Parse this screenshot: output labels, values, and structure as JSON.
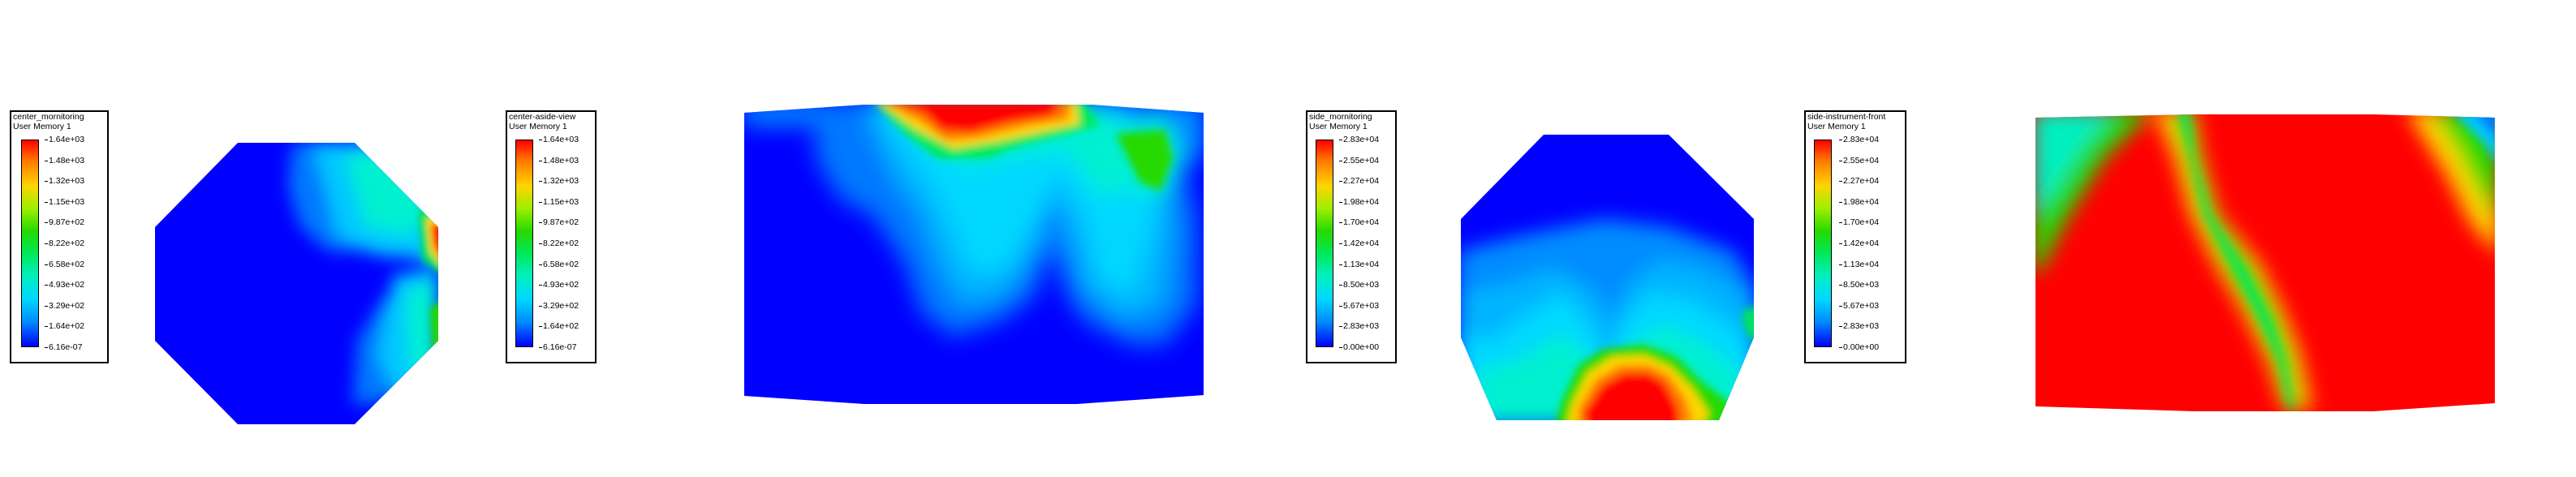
{
  "legends": [
    {
      "title": "center_mornitoring",
      "subtitle": "User Memory 1",
      "ticks": [
        "1.64e+03",
        "1.48e+03",
        "1.32e+03",
        "1.15e+03",
        "9.87e+02",
        "8.22e+02",
        "6.58e+02",
        "4.93e+02",
        "3.29e+02",
        "1.64e+02",
        "6.16e-07"
      ]
    },
    {
      "title": "center-aside-view",
      "subtitle": "User Memory 1",
      "ticks": [
        "1.64e+03",
        "1.48e+03",
        "1.32e+03",
        "1.15e+03",
        "9.87e+02",
        "8.22e+02",
        "6.58e+02",
        "4.93e+02",
        "3.29e+02",
        "1.64e+02",
        "6.16e-07"
      ]
    },
    {
      "title": "side_mornitoring",
      "subtitle": "User Memory 1",
      "ticks": [
        "2.83e+04",
        "2.55e+04",
        "2.27e+04",
        "1.98e+04",
        "1.70e+04",
        "1.42e+04",
        "1.13e+04",
        "8.50e+03",
        "5.67e+03",
        "2.83e+03",
        "0.00e+00"
      ]
    },
    {
      "title": "side-instrument-front",
      "subtitle": "User Memory 1",
      "ticks": [
        "2.83e+04",
        "2.55e+04",
        "2.27e+04",
        "1.98e+04",
        "1.70e+04",
        "1.42e+04",
        "1.13e+04",
        "8.50e+03",
        "5.67e+03",
        "2.83e+03",
        "0.00e+00"
      ]
    }
  ],
  "colormap": [
    "#0000ff",
    "#008cff",
    "#00d8ff",
    "#00f0c0",
    "#00e85a",
    "#27d900",
    "#9fef00",
    "#ffd400",
    "#ff7a00",
    "#ff0000"
  ]
}
